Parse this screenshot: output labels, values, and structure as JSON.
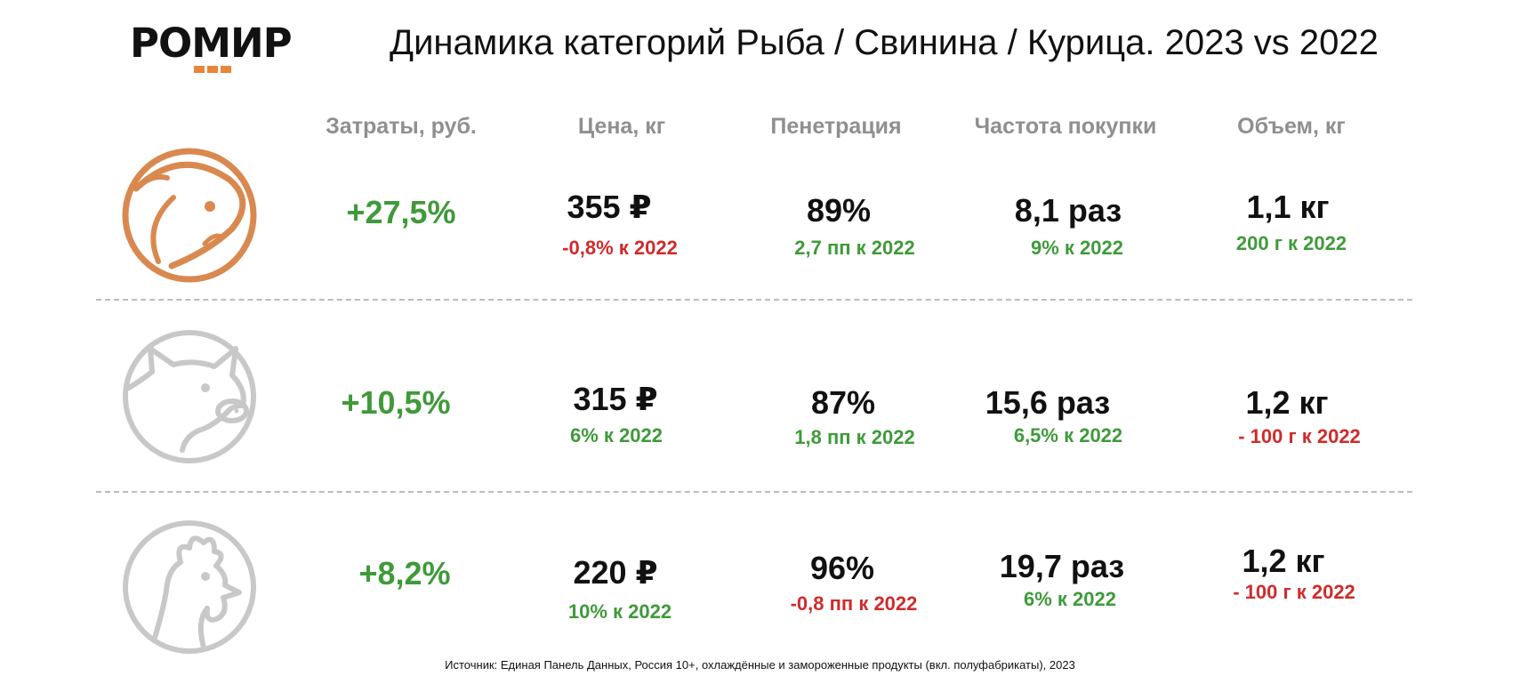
{
  "logo": {
    "text": "РОМИР",
    "accent_color": "#e8863a"
  },
  "title": "Динамика категорий Рыба / Свинина / Курица. 2023 vs 2022",
  "columns": [
    "Затраты, руб.",
    "Цена, кг",
    "Пенетрация",
    "Частота покупки",
    "Объем, кг"
  ],
  "rows": [
    {
      "icon": "fish-icon",
      "spend": "+27,5%",
      "price": {
        "main": "355 ₽",
        "sub": "-0,8% к 2022",
        "trend": "down"
      },
      "penetration": {
        "main": "89%",
        "sub": "2,7 пп к 2022",
        "trend": "up"
      },
      "frequency": {
        "main": "8,1 раз",
        "sub": "9% к 2022",
        "trend": "up"
      },
      "volume": {
        "main": "1,1 кг",
        "sub": "200 г к 2022",
        "trend": "up"
      }
    },
    {
      "icon": "pig-icon",
      "spend": "+10,5%",
      "price": {
        "main": "315 ₽",
        "sub": "6% к 2022",
        "trend": "up"
      },
      "penetration": {
        "main": "87%",
        "sub": "1,8 пп к 2022",
        "trend": "up"
      },
      "frequency": {
        "main": "15,6 раз",
        "sub": "6,5% к 2022",
        "trend": "up"
      },
      "volume": {
        "main": "1,2 кг",
        "sub": "- 100 г к 2022",
        "trend": "down"
      }
    },
    {
      "icon": "chicken-icon",
      "spend": "+8,2%",
      "price": {
        "main": "220 ₽",
        "sub": "10% к 2022",
        "trend": "up"
      },
      "penetration": {
        "main": "96%",
        "sub": "-0,8 пп к 2022",
        "trend": "down"
      },
      "frequency": {
        "main": "19,7 раз",
        "sub": "6% к 2022",
        "trend": "up"
      },
      "volume": {
        "main": "1,2 кг",
        "sub": "- 100 г к 2022",
        "trend": "down"
      }
    }
  ],
  "colors": {
    "positive": "#3f9a3a",
    "negative": "#cf2b2b",
    "fish_icon": "#d9894f",
    "other_icons": "#c8c8c8"
  },
  "source": "Источник: Единая Панель Данных, Россия 10+, охлаждённые и замороженные продукты (вкл. полуфабрикаты), 2023"
}
